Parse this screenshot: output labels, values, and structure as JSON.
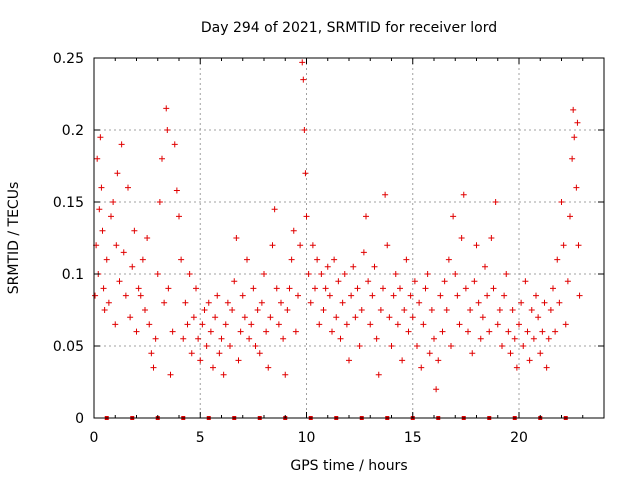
{
  "chart_data": {
    "type": "scatter",
    "title": "Day 294 of 2021, SRMTID for receiver lord",
    "xlabel": "GPS time / hours",
    "ylabel": "SRMTID / TECUs",
    "xlim": [
      0,
      24
    ],
    "ylim": [
      0,
      0.25
    ],
    "x_ticks": [
      0,
      5,
      10,
      15,
      20
    ],
    "x_tick_labels": [
      "0",
      "5",
      "10",
      "15",
      "20"
    ],
    "y_ticks": [
      0,
      0.05,
      0.1,
      0.15,
      0.2,
      0.25
    ],
    "y_tick_labels": [
      "0",
      "0.05",
      "0.1",
      "0.15",
      "0.2",
      "0.25"
    ],
    "grid": true,
    "marker": "+",
    "color": "#e00000",
    "series": [
      {
        "name": "SRMTID",
        "points": [
          [
            0.05,
            0.085
          ],
          [
            0.1,
            0.12
          ],
          [
            0.15,
            0.18
          ],
          [
            0.2,
            0.1
          ],
          [
            0.25,
            0.145
          ],
          [
            0.3,
            0.195
          ],
          [
            0.35,
            0.16
          ],
          [
            0.4,
            0.13
          ],
          [
            0.45,
            0.09
          ],
          [
            0.5,
            0.075
          ],
          [
            0.6,
            0.11
          ],
          [
            0.7,
            0.08
          ],
          [
            0.8,
            0.14
          ],
          [
            0.9,
            0.15
          ],
          [
            1.0,
            0.065
          ],
          [
            1.05,
            0.12
          ],
          [
            1.1,
            0.17
          ],
          [
            1.2,
            0.095
          ],
          [
            1.3,
            0.19
          ],
          [
            1.4,
            0.115
          ],
          [
            1.5,
            0.085
          ],
          [
            1.6,
            0.16
          ],
          [
            1.7,
            0.07
          ],
          [
            1.8,
            0.105
          ],
          [
            1.9,
            0.13
          ],
          [
            2.0,
            0.06
          ],
          [
            2.1,
            0.09
          ],
          [
            2.2,
            0.085
          ],
          [
            2.3,
            0.11
          ],
          [
            2.4,
            0.075
          ],
          [
            2.5,
            0.125
          ],
          [
            2.6,
            0.065
          ],
          [
            2.7,
            0.045
          ],
          [
            2.8,
            0.035
          ],
          [
            2.9,
            0.055
          ],
          [
            3.0,
            0.1
          ],
          [
            3.1,
            0.15
          ],
          [
            3.2,
            0.18
          ],
          [
            3.3,
            0.08
          ],
          [
            3.4,
            0.215
          ],
          [
            3.45,
            0.2
          ],
          [
            3.5,
            0.09
          ],
          [
            3.6,
            0.03
          ],
          [
            3.7,
            0.06
          ],
          [
            3.8,
            0.19
          ],
          [
            3.9,
            0.158
          ],
          [
            4.0,
            0.14
          ],
          [
            4.1,
            0.11
          ],
          [
            4.2,
            0.055
          ],
          [
            4.3,
            0.08
          ],
          [
            4.4,
            0.065
          ],
          [
            4.5,
            0.1
          ],
          [
            4.6,
            0.045
          ],
          [
            4.7,
            0.07
          ],
          [
            4.8,
            0.09
          ],
          [
            4.9,
            0.055
          ],
          [
            5.0,
            0.04
          ],
          [
            5.1,
            0.065
          ],
          [
            5.2,
            0.075
          ],
          [
            5.3,
            0.05
          ],
          [
            5.4,
            0.08
          ],
          [
            5.5,
            0.06
          ],
          [
            5.6,
            0.035
          ],
          [
            5.7,
            0.07
          ],
          [
            5.8,
            0.085
          ],
          [
            5.9,
            0.045
          ],
          [
            6.0,
            0.055
          ],
          [
            6.1,
            0.03
          ],
          [
            6.2,
            0.065
          ],
          [
            6.3,
            0.08
          ],
          [
            6.4,
            0.05
          ],
          [
            6.5,
            0.075
          ],
          [
            6.6,
            0.095
          ],
          [
            6.7,
            0.125
          ],
          [
            6.8,
            0.04
          ],
          [
            6.9,
            0.06
          ],
          [
            7.0,
            0.085
          ],
          [
            7.1,
            0.07
          ],
          [
            7.2,
            0.11
          ],
          [
            7.3,
            0.055
          ],
          [
            7.4,
            0.065
          ],
          [
            7.5,
            0.09
          ],
          [
            7.6,
            0.05
          ],
          [
            7.7,
            0.075
          ],
          [
            7.8,
            0.045
          ],
          [
            7.9,
            0.08
          ],
          [
            8.0,
            0.1
          ],
          [
            8.1,
            0.06
          ],
          [
            8.2,
            0.035
          ],
          [
            8.3,
            0.07
          ],
          [
            8.4,
            0.12
          ],
          [
            8.5,
            0.145
          ],
          [
            8.6,
            0.09
          ],
          [
            8.7,
            0.065
          ],
          [
            8.8,
            0.08
          ],
          [
            8.9,
            0.055
          ],
          [
            9.0,
            0.03
          ],
          [
            9.1,
            0.075
          ],
          [
            9.2,
            0.09
          ],
          [
            9.3,
            0.11
          ],
          [
            9.4,
            0.13
          ],
          [
            9.5,
            0.06
          ],
          [
            9.6,
            0.085
          ],
          [
            9.7,
            0.12
          ],
          [
            9.8,
            0.247
          ],
          [
            9.85,
            0.235
          ],
          [
            9.9,
            0.2
          ],
          [
            9.95,
            0.17
          ],
          [
            10.0,
            0.14
          ],
          [
            10.1,
            0.1
          ],
          [
            10.2,
            0.08
          ],
          [
            10.3,
            0.12
          ],
          [
            10.4,
            0.09
          ],
          [
            10.5,
            0.11
          ],
          [
            10.6,
            0.065
          ],
          [
            10.7,
            0.1
          ],
          [
            10.8,
            0.075
          ],
          [
            10.9,
            0.09
          ],
          [
            11.0,
            0.105
          ],
          [
            11.1,
            0.085
          ],
          [
            11.2,
            0.06
          ],
          [
            11.3,
            0.11
          ],
          [
            11.4,
            0.07
          ],
          [
            11.5,
            0.095
          ],
          [
            11.6,
            0.055
          ],
          [
            11.7,
            0.08
          ],
          [
            11.8,
            0.1
          ],
          [
            11.9,
            0.065
          ],
          [
            12.0,
            0.04
          ],
          [
            12.1,
            0.085
          ],
          [
            12.2,
            0.105
          ],
          [
            12.3,
            0.07
          ],
          [
            12.4,
            0.09
          ],
          [
            12.5,
            0.05
          ],
          [
            12.6,
            0.075
          ],
          [
            12.7,
            0.115
          ],
          [
            12.8,
            0.14
          ],
          [
            12.9,
            0.095
          ],
          [
            13.0,
            0.065
          ],
          [
            13.1,
            0.085
          ],
          [
            13.2,
            0.105
          ],
          [
            13.3,
            0.055
          ],
          [
            13.4,
            0.03
          ],
          [
            13.5,
            0.075
          ],
          [
            13.6,
            0.09
          ],
          [
            13.7,
            0.155
          ],
          [
            13.8,
            0.12
          ],
          [
            13.9,
            0.07
          ],
          [
            14.0,
            0.05
          ],
          [
            14.1,
            0.085
          ],
          [
            14.2,
            0.1
          ],
          [
            14.3,
            0.065
          ],
          [
            14.4,
            0.09
          ],
          [
            14.5,
            0.04
          ],
          [
            14.6,
            0.075
          ],
          [
            14.7,
            0.11
          ],
          [
            14.8,
            0.06
          ],
          [
            14.9,
            0.085
          ],
          [
            15.0,
            0.07
          ],
          [
            15.1,
            0.095
          ],
          [
            15.2,
            0.05
          ],
          [
            15.3,
            0.08
          ],
          [
            15.4,
            0.035
          ],
          [
            15.5,
            0.065
          ],
          [
            15.6,
            0.09
          ],
          [
            15.7,
            0.1
          ],
          [
            15.8,
            0.045
          ],
          [
            15.9,
            0.075
          ],
          [
            16.0,
            0.055
          ],
          [
            16.1,
            0.02
          ],
          [
            16.2,
            0.04
          ],
          [
            16.3,
            0.085
          ],
          [
            16.4,
            0.06
          ],
          [
            16.5,
            0.095
          ],
          [
            16.6,
            0.075
          ],
          [
            16.7,
            0.11
          ],
          [
            16.8,
            0.05
          ],
          [
            16.9,
            0.14
          ],
          [
            17.0,
            0.1
          ],
          [
            17.1,
            0.085
          ],
          [
            17.2,
            0.065
          ],
          [
            17.3,
            0.125
          ],
          [
            17.4,
            0.155
          ],
          [
            17.5,
            0.09
          ],
          [
            17.6,
            0.06
          ],
          [
            17.7,
            0.075
          ],
          [
            17.8,
            0.045
          ],
          [
            17.9,
            0.095
          ],
          [
            18.0,
            0.12
          ],
          [
            18.1,
            0.08
          ],
          [
            18.2,
            0.055
          ],
          [
            18.3,
            0.07
          ],
          [
            18.4,
            0.105
          ],
          [
            18.5,
            0.085
          ],
          [
            18.6,
            0.06
          ],
          [
            18.7,
            0.125
          ],
          [
            18.8,
            0.09
          ],
          [
            18.9,
            0.15
          ],
          [
            19.0,
            0.065
          ],
          [
            19.1,
            0.075
          ],
          [
            19.2,
            0.05
          ],
          [
            19.3,
            0.085
          ],
          [
            19.4,
            0.1
          ],
          [
            19.5,
            0.06
          ],
          [
            19.6,
            0.045
          ],
          [
            19.7,
            0.075
          ],
          [
            19.8,
            0.055
          ],
          [
            19.9,
            0.035
          ],
          [
            20.0,
            0.065
          ],
          [
            20.1,
            0.08
          ],
          [
            20.2,
            0.05
          ],
          [
            20.3,
            0.095
          ],
          [
            20.4,
            0.06
          ],
          [
            20.5,
            0.04
          ],
          [
            20.6,
            0.075
          ],
          [
            20.7,
            0.055
          ],
          [
            20.8,
            0.085
          ],
          [
            20.9,
            0.07
          ],
          [
            21.0,
            0.045
          ],
          [
            21.1,
            0.06
          ],
          [
            21.2,
            0.08
          ],
          [
            21.3,
            0.035
          ],
          [
            21.4,
            0.055
          ],
          [
            21.5,
            0.075
          ],
          [
            21.6,
            0.09
          ],
          [
            21.7,
            0.06
          ],
          [
            21.8,
            0.11
          ],
          [
            21.9,
            0.08
          ],
          [
            22.0,
            0.15
          ],
          [
            22.1,
            0.12
          ],
          [
            22.2,
            0.065
          ],
          [
            22.3,
            0.095
          ],
          [
            22.4,
            0.14
          ],
          [
            22.5,
            0.18
          ],
          [
            22.55,
            0.214
          ],
          [
            22.6,
            0.195
          ],
          [
            22.7,
            0.16
          ],
          [
            22.75,
            0.205
          ],
          [
            22.8,
            0.12
          ],
          [
            22.85,
            0.085
          ]
        ]
      }
    ],
    "baseline_markers": {
      "y": 0,
      "x": [
        0.6,
        1.8,
        3.0,
        4.2,
        5.4,
        6.6,
        7.8,
        9.0,
        10.2,
        11.4,
        12.6,
        13.8,
        15.0,
        16.2,
        17.4,
        18.6,
        19.8,
        21.0,
        22.2
      ]
    }
  }
}
